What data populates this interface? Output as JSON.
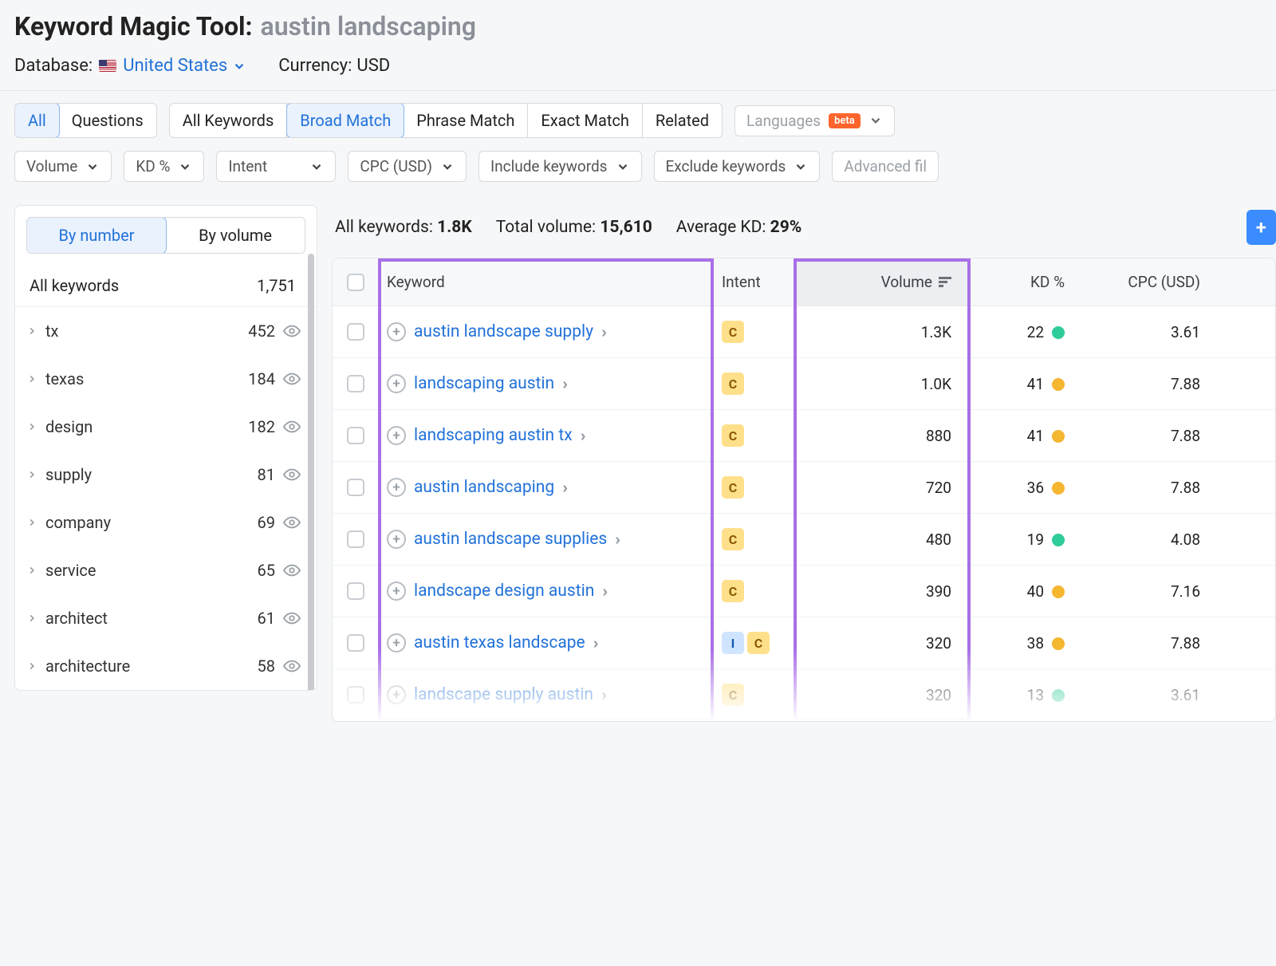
{
  "header": {
    "tool_name": "Keyword Magic Tool:",
    "query": "austin landscaping",
    "database_label": "Database:",
    "database_value": "United States",
    "currency_label": "Currency:",
    "currency_value": "USD"
  },
  "tabs_primary": {
    "all": "All",
    "questions": "Questions"
  },
  "match_tabs": {
    "all_keywords": "All Keywords",
    "broad": "Broad Match",
    "phrase": "Phrase Match",
    "exact": "Exact Match",
    "related": "Related"
  },
  "languages": {
    "label": "Languages",
    "badge": "beta"
  },
  "filters": {
    "volume": "Volume",
    "kd": "KD %",
    "intent": "Intent",
    "cpc": "CPC (USD)",
    "include": "Include keywords",
    "exclude": "Exclude keywords",
    "advanced": "Advanced fil"
  },
  "sidebar": {
    "by_number": "By number",
    "by_volume": "By volume",
    "all_label": "All keywords",
    "all_count": "1,751",
    "groups": [
      {
        "label": "tx",
        "count": "452"
      },
      {
        "label": "texas",
        "count": "184"
      },
      {
        "label": "design",
        "count": "182"
      },
      {
        "label": "supply",
        "count": "81"
      },
      {
        "label": "company",
        "count": "69"
      },
      {
        "label": "service",
        "count": "65"
      },
      {
        "label": "architect",
        "count": "61"
      },
      {
        "label": "architecture",
        "count": "58"
      }
    ]
  },
  "summary": {
    "all_kw_label": "All keywords:",
    "all_kw_value": "1.8K",
    "total_vol_label": "Total volume:",
    "total_vol_value": "15,610",
    "avg_kd_label": "Average KD:",
    "avg_kd_value": "29%",
    "add_label": "+"
  },
  "columns": {
    "keyword": "Keyword",
    "intent": "Intent",
    "volume": "Volume",
    "kd": "KD %",
    "cpc": "CPC (USD)"
  },
  "rows": [
    {
      "keyword": "austin landscape supply",
      "intents": [
        "C"
      ],
      "volume": "1.3K",
      "kd": "22",
      "kd_color": "#2ecc9a",
      "cpc": "3.61"
    },
    {
      "keyword": "landscaping austin",
      "intents": [
        "C"
      ],
      "volume": "1.0K",
      "kd": "41",
      "kd_color": "#f5b630",
      "cpc": "7.88"
    },
    {
      "keyword": "landscaping austin tx",
      "intents": [
        "C"
      ],
      "volume": "880",
      "kd": "41",
      "kd_color": "#f5b630",
      "cpc": "7.88"
    },
    {
      "keyword": "austin landscaping",
      "intents": [
        "C"
      ],
      "volume": "720",
      "kd": "36",
      "kd_color": "#f5b630",
      "cpc": "7.88"
    },
    {
      "keyword": "austin landscape supplies",
      "intents": [
        "C"
      ],
      "volume": "480",
      "kd": "19",
      "kd_color": "#2ecc9a",
      "cpc": "4.08"
    },
    {
      "keyword": "landscape design austin",
      "intents": [
        "C"
      ],
      "volume": "390",
      "kd": "40",
      "kd_color": "#f5b630",
      "cpc": "7.16"
    },
    {
      "keyword": "austin texas landscape",
      "intents": [
        "I",
        "C"
      ],
      "volume": "320",
      "kd": "38",
      "kd_color": "#f5b630",
      "cpc": "7.88"
    },
    {
      "keyword": "landscape supply austin",
      "intents": [
        "C"
      ],
      "volume": "320",
      "kd": "13",
      "kd_color": "#2ecc9a",
      "cpc": "3.61"
    }
  ],
  "colors": {
    "link": "#2272d9",
    "highlight": "#a96fe8",
    "intent_c_bg": "#ffe08a",
    "intent_i_bg": "#cfe5ff"
  }
}
